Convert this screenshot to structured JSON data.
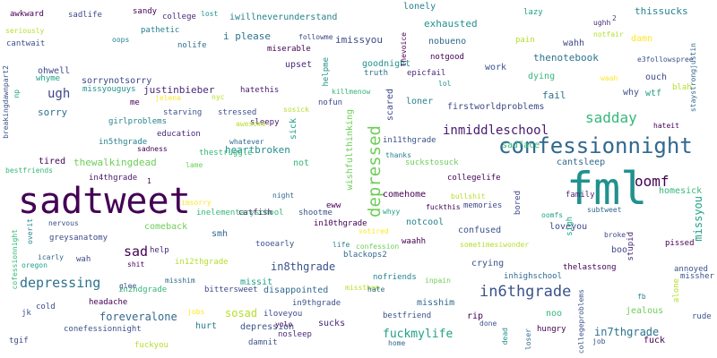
{
  "cloud": {
    "words": [
      {
        "text": "sadtweet",
        "color": "#440154"
      },
      {
        "text": "fml",
        "color": "#21918c"
      },
      {
        "text": "confessionnight",
        "color": "#31688e"
      },
      {
        "text": "oomf",
        "color": "#440154"
      },
      {
        "text": "depressed",
        "color": "#6ece58"
      },
      {
        "text": "in6thgrade",
        "color": "#3b528b"
      },
      {
        "text": "depressing",
        "color": "#2c728e"
      },
      {
        "text": "sadday",
        "color": "#35b779"
      },
      {
        "text": "inmiddleschool",
        "color": "#481a6c"
      },
      {
        "text": "fuckmylife",
        "color": "#1fa187"
      },
      {
        "text": "in7thgrade",
        "color": "#2c728e"
      },
      {
        "text": "sad",
        "color": "#440154"
      },
      {
        "text": "foreveralone",
        "color": "#31688e"
      },
      {
        "text": "sosad",
        "color": "#b5de2b"
      },
      {
        "text": "missyou",
        "color": "#1fa187"
      },
      {
        "text": "in8thgrade",
        "color": "#3b528b"
      },
      {
        "text": "ugh",
        "color": "#414487"
      },
      {
        "text": "sorry",
        "color": "#2c728e"
      },
      {
        "text": "tired",
        "color": "#440154"
      },
      {
        "text": "thewalkingdead",
        "color": "#6ece58"
      },
      {
        "text": "heartbroken",
        "color": "#21918c"
      },
      {
        "text": "homesick",
        "color": "#35b779"
      },
      {
        "text": "sick",
        "color": "#1fa187"
      },
      {
        "text": "wishfulthinking",
        "color": "#6ece58"
      },
      {
        "text": "firstworldproblems",
        "color": "#3e4989"
      },
      {
        "text": "cantsleep",
        "color": "#31688e"
      },
      {
        "text": "justinbieber",
        "color": "#482878"
      },
      {
        "text": "i please",
        "color": "#2c728e"
      },
      {
        "text": "imissyou",
        "color": "#3e4989"
      },
      {
        "text": "exhausted",
        "color": "#21918c"
      },
      {
        "text": "thissucks",
        "color": "#26828e"
      },
      {
        "text": "lonely",
        "color": "#26828e"
      },
      {
        "text": "goodnight",
        "color": "#21918c"
      },
      {
        "text": "thenotebook",
        "color": "#2c728e"
      },
      {
        "text": "damn",
        "color": "#fde725"
      },
      {
        "text": "wahh",
        "color": "#3e4989"
      },
      {
        "text": "upset",
        "color": "#482878"
      },
      {
        "text": "work",
        "color": "#3b528b"
      },
      {
        "text": "dying",
        "color": "#35b779"
      },
      {
        "text": "fail",
        "color": "#2c728e"
      },
      {
        "text": "why",
        "color": "#3b528b"
      },
      {
        "text": "wtf",
        "color": "#1fa187"
      },
      {
        "text": "ouch",
        "color": "#3e4989"
      },
      {
        "text": "scared",
        "color": "#3e4989"
      },
      {
        "text": "loner",
        "color": "#26828e"
      },
      {
        "text": "sadface",
        "color": "#35b779"
      },
      {
        "text": "crying",
        "color": "#3b528b"
      },
      {
        "text": "confused",
        "color": "#3b528b"
      },
      {
        "text": "memories",
        "color": "#3e4989"
      },
      {
        "text": "comehome",
        "color": "#440154"
      },
      {
        "text": "notcool",
        "color": "#26828e"
      },
      {
        "text": "misshim",
        "color": "#31688e"
      },
      {
        "text": "disappointed",
        "color": "#31688e"
      },
      {
        "text": "missit",
        "color": "#1fa187"
      },
      {
        "text": "hurt",
        "color": "#26828e"
      },
      {
        "text": "depression",
        "color": "#3b528b"
      },
      {
        "text": "sucks",
        "color": "#482878"
      },
      {
        "text": "rip",
        "color": "#440154"
      },
      {
        "text": "noo",
        "color": "#35b779"
      },
      {
        "text": "jealous",
        "color": "#6ece58"
      },
      {
        "text": "fuck",
        "color": "#440154"
      },
      {
        "text": "loveyou",
        "color": "#3e4989"
      },
      {
        "text": "boo",
        "color": "#3e4989"
      },
      {
        "text": "stupid",
        "color": "#482878"
      },
      {
        "text": "bored",
        "color": "#3e4989"
      },
      {
        "text": "not",
        "color": "#35b779"
      },
      {
        "text": "smh",
        "color": "#31688e"
      },
      {
        "text": "comeback",
        "color": "#6ece58"
      },
      {
        "text": "catfish",
        "color": "#440154"
      },
      {
        "text": "help",
        "color": "#482878"
      },
      {
        "text": "wah",
        "color": "#3e4989"
      },
      {
        "text": "cold",
        "color": "#3e4989"
      },
      {
        "text": "in4thgrade",
        "color": "#481a6c"
      },
      {
        "text": "in5thgrade",
        "color": "#26828e"
      },
      {
        "text": "girlproblems",
        "color": "#26828e"
      },
      {
        "text": "education",
        "color": "#482878"
      },
      {
        "text": "starving",
        "color": "#3b528b"
      },
      {
        "text": "stressed",
        "color": "#3b528b"
      },
      {
        "text": "sleepy",
        "color": "#481a6c"
      },
      {
        "text": "hatethis",
        "color": "#481a6c"
      },
      {
        "text": "thestruggle",
        "color": "#35b779"
      },
      {
        "text": "lame",
        "color": "#6ece58"
      },
      {
        "text": "bestfriends",
        "color": "#35b779"
      },
      {
        "text": "cofessionnight",
        "color": "#35b779"
      },
      {
        "text": "breakingdawnpart2",
        "color": "#3b528b"
      },
      {
        "text": "greysanatomy",
        "color": "#3e4989"
      },
      {
        "text": "headache",
        "color": "#440154"
      },
      {
        "text": "conefessionnight",
        "color": "#3b528b"
      },
      {
        "text": "tgif",
        "color": "#3e4989"
      },
      {
        "text": "fuckyou",
        "color": "#b5de2b"
      },
      {
        "text": "damnit",
        "color": "#3b528b"
      },
      {
        "text": "nosleep",
        "color": "#482878"
      },
      {
        "text": "iloveyou",
        "color": "#3e4989"
      },
      {
        "text": "bittersweet",
        "color": "#3e4989"
      },
      {
        "text": "in2ndgrade",
        "color": "#35b779"
      },
      {
        "text": "in9thgrade",
        "color": "#3b528b"
      },
      {
        "text": "in12thgrade",
        "color": "#b5de2b"
      },
      {
        "text": "inelementaryschool",
        "color": "#35b779"
      },
      {
        "text": "nofriends",
        "color": "#26828e"
      },
      {
        "text": "bestfriend",
        "color": "#3b528b"
      },
      {
        "text": "blackops2",
        "color": "#31688e"
      },
      {
        "text": "tooearly",
        "color": "#3b528b"
      },
      {
        "text": "waahh",
        "color": "#440154"
      },
      {
        "text": "in10thgrade",
        "color": "#440154"
      },
      {
        "text": "shootme",
        "color": "#3b528b"
      },
      {
        "text": "collegelife",
        "color": "#440154"
      },
      {
        "text": "eww",
        "color": "#440154"
      },
      {
        "text": "in11thgrade",
        "color": "#3b528b"
      },
      {
        "text": "inhighschool",
        "color": "#31688e"
      },
      {
        "text": "thelastsong",
        "color": "#440154"
      },
      {
        "text": "pissed",
        "color": "#440154"
      },
      {
        "text": "annoyed",
        "color": "#3b528b"
      },
      {
        "text": "missher",
        "color": "#3b528b"
      },
      {
        "text": "rude",
        "color": "#3b528b"
      },
      {
        "text": "hungry",
        "color": "#440154"
      },
      {
        "text": "family",
        "color": "#482878"
      },
      {
        "text": "sadlife",
        "color": "#3e4989"
      },
      {
        "text": "sandy",
        "color": "#440154"
      },
      {
        "text": "college",
        "color": "#482878"
      },
      {
        "text": "iwillneverunderstand",
        "color": "#26828e"
      },
      {
        "text": "awkward",
        "color": "#440154"
      },
      {
        "text": "seriously",
        "color": "#b5de2b"
      },
      {
        "text": "pathetic",
        "color": "#26828e"
      },
      {
        "text": "cantwait",
        "color": "#3b528b"
      },
      {
        "text": "nolife",
        "color": "#2c728e"
      },
      {
        "text": "miserable",
        "color": "#440154"
      },
      {
        "text": "ohwell",
        "color": "#3e4989"
      },
      {
        "text": "whyme",
        "color": "#1fa187"
      },
      {
        "text": "sorrynotsorry",
        "color": "#3e4989"
      },
      {
        "text": "missyouguys",
        "color": "#21918c"
      },
      {
        "text": "nobueno",
        "color": "#31688e"
      },
      {
        "text": "notgood",
        "color": "#440154"
      },
      {
        "text": "epicfail",
        "color": "#482878"
      },
      {
        "text": "helpme",
        "color": "#21918c"
      },
      {
        "text": "truth",
        "color": "#2c728e"
      },
      {
        "text": "hateit",
        "color": "#440154"
      },
      {
        "text": "lazy",
        "color": "#1fa187"
      },
      {
        "text": "ughh",
        "color": "#482878"
      },
      {
        "text": "me",
        "color": "#440154"
      },
      {
        "text": "jelena",
        "color": "#fde725"
      },
      {
        "text": "nyc",
        "color": "#b5de2b"
      },
      {
        "text": "sosick",
        "color": "#b5de2b"
      },
      {
        "text": "nofun",
        "color": "#3e4989"
      },
      {
        "text": "whatever",
        "color": "#31688e"
      },
      {
        "text": "sadness",
        "color": "#440154"
      },
      {
        "text": "night",
        "color": "#31688e"
      },
      {
        "text": "thanks",
        "color": "#26828e"
      },
      {
        "text": "suckstosuck",
        "color": "#6ece58"
      },
      {
        "text": "bullshit",
        "color": "#b5de2b"
      },
      {
        "text": "fuckthis",
        "color": "#440154"
      },
      {
        "text": "whyy",
        "color": "#1fa187"
      },
      {
        "text": "oomfs",
        "color": "#1fa187"
      },
      {
        "text": "subtweet",
        "color": "#31688e"
      },
      {
        "text": "imsorry",
        "color": "#fde725"
      },
      {
        "text": "nervous",
        "color": "#3b528b"
      },
      {
        "text": "overit",
        "color": "#26828e"
      },
      {
        "text": "icarly",
        "color": "#31688e"
      },
      {
        "text": "oregon",
        "color": "#1fa187"
      },
      {
        "text": "shit",
        "color": "#440154"
      },
      {
        "text": "glee",
        "color": "#3b528b"
      },
      {
        "text": "misshim",
        "color": "#31688e"
      },
      {
        "text": "jk",
        "color": "#3b528b"
      },
      {
        "text": "jobs",
        "color": "#fde725"
      },
      {
        "text": "yolo",
        "color": "#440154"
      },
      {
        "text": "sotired",
        "color": "#fde725"
      },
      {
        "text": "confession",
        "color": "#6ece58"
      },
      {
        "text": "sometimesiwonder",
        "color": "#b5de2b"
      },
      {
        "text": "inpain",
        "color": "#6ece58"
      },
      {
        "text": "missthem",
        "color": "#b5de2b"
      },
      {
        "text": "hate",
        "color": "#31688e"
      },
      {
        "text": "collegeproblems",
        "color": "#3b528b"
      },
      {
        "text": "done",
        "color": "#3b528b"
      },
      {
        "text": "dead",
        "color": "#21918c"
      },
      {
        "text": "loser",
        "color": "#31688e"
      },
      {
        "text": "home",
        "color": "#31688e"
      },
      {
        "text": "job",
        "color": "#3b528b"
      },
      {
        "text": "fb",
        "color": "#26828e"
      },
      {
        "text": "alone",
        "color": "#b5de2b"
      },
      {
        "text": "sigh",
        "color": "#1fa187"
      },
      {
        "text": "broke",
        "color": "#3e4989"
      },
      {
        "text": "life",
        "color": "#26828e"
      },
      {
        "text": "np",
        "color": "#1fa187"
      },
      {
        "text": "lost",
        "color": "#21918c"
      },
      {
        "text": "oops",
        "color": "#26828e"
      },
      {
        "text": "followme",
        "color": "#3e4989"
      },
      {
        "text": "thevoice",
        "color": "#440154"
      },
      {
        "text": "pain",
        "color": "#b5de2b"
      },
      {
        "text": "notfair",
        "color": "#b5de2b"
      },
      {
        "text": "2",
        "color": "#3e4989"
      },
      {
        "text": "staystrongjustin",
        "color": "#31688e"
      },
      {
        "text": "e3followspree",
        "color": "#3b528b"
      },
      {
        "text": "waah",
        "color": "#fde725"
      },
      {
        "text": "blah",
        "color": "#b5de2b"
      },
      {
        "text": "lol",
        "color": "#21918c"
      },
      {
        "text": "killmenow",
        "color": "#35b779"
      },
      {
        "text": "awesome",
        "color": "#b5de2b"
      },
      {
        "text": "1",
        "color": "#440154"
      },
      {
        "text": "sadday",
        "color": "#fde725"
      },
      {
        "text": "no",
        "color": "#440154"
      }
    ]
  }
}
